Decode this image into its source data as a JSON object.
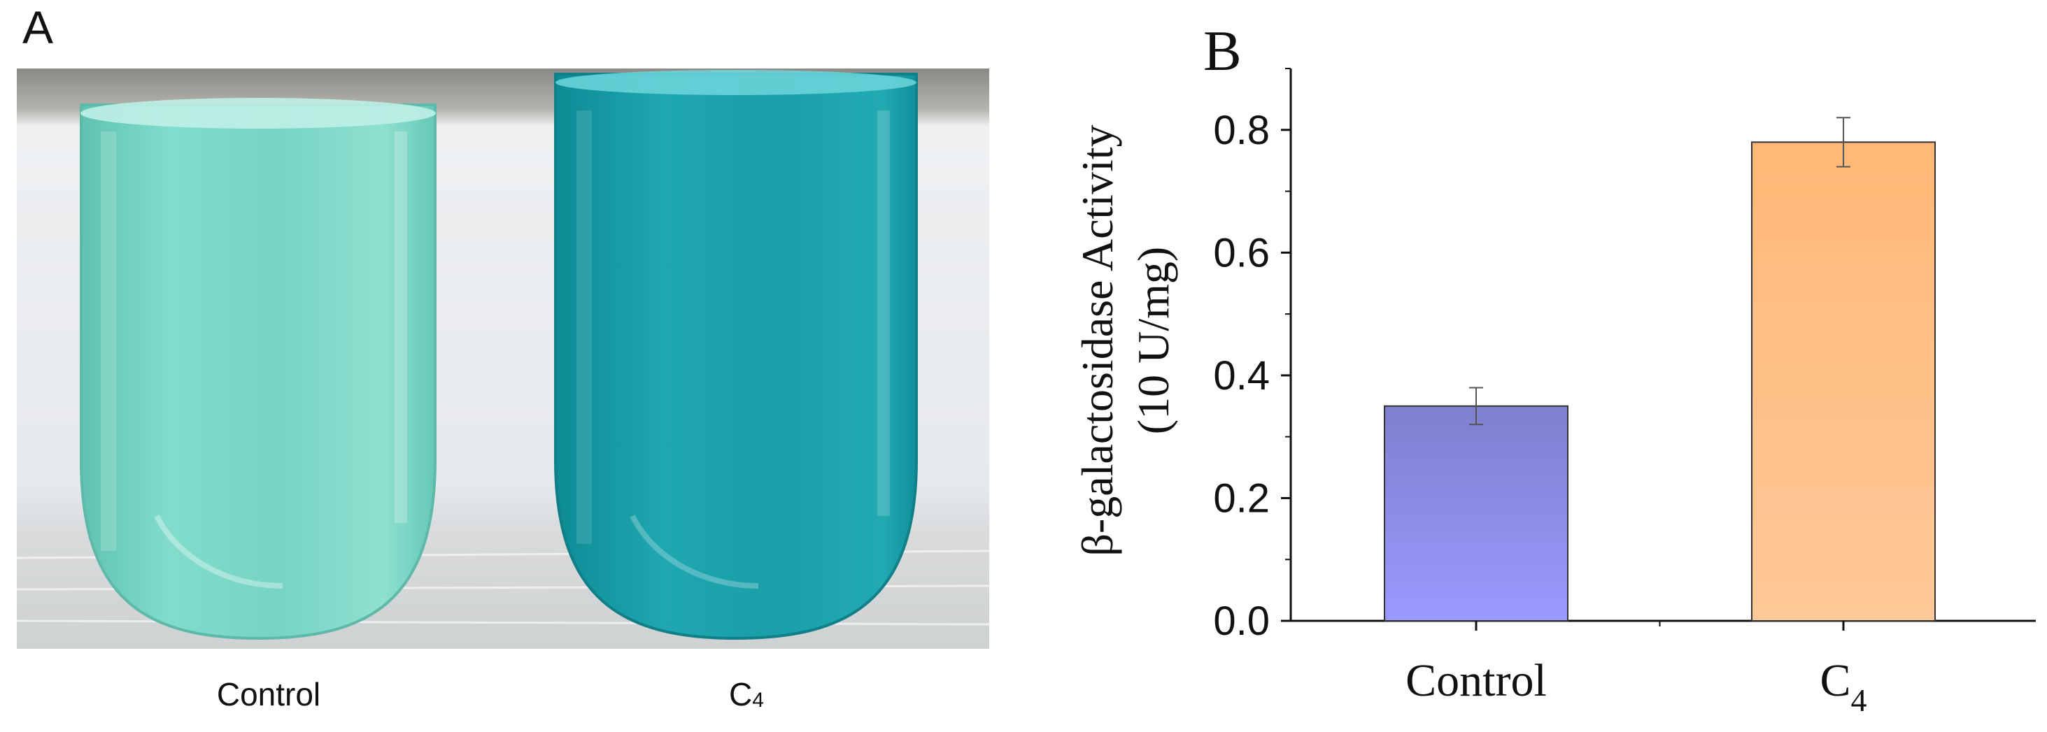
{
  "panel_a": {
    "letter": "A",
    "tube_labels": [
      {
        "base": "Control",
        "subscript": ""
      },
      {
        "base": "C",
        "subscript": "4"
      }
    ],
    "colors": {
      "control_liquid": "#6fd0bf",
      "c4_liquid": "#1a9ea8",
      "background": "#e9ecee"
    }
  },
  "panel_b": {
    "letter": "B"
  },
  "chart_data": {
    "type": "bar",
    "categories": [
      {
        "base": "Control",
        "subscript": ""
      },
      {
        "base": "C",
        "subscript": "4"
      }
    ],
    "values": [
      0.35,
      0.78
    ],
    "errors": [
      0.03,
      0.04
    ],
    "ylabel_line1": "β-galactosidase Activity",
    "ylabel_line2": "(10 U/mg)",
    "xlabel": "",
    "ylim": [
      0,
      0.9
    ],
    "yticks": [
      "0.0",
      "0.2",
      "0.4",
      "0.6",
      "0.8"
    ],
    "ytick_values": [
      0.0,
      0.2,
      0.4,
      0.6,
      0.8
    ],
    "bar_colors": [
      {
        "top": "#7f7fcf",
        "bottom": "#9a9aff"
      },
      {
        "top": "#ffb877",
        "bottom": "#ffc898"
      }
    ],
    "legend": null,
    "grid": false
  }
}
